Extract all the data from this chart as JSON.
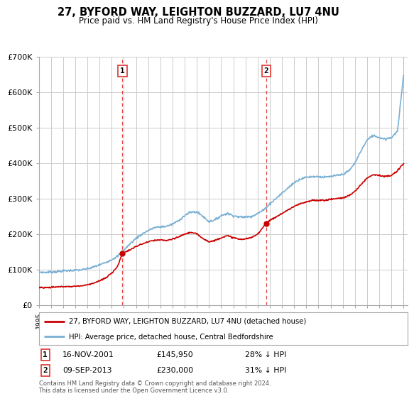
{
  "title": "27, BYFORD WAY, LEIGHTON BUZZARD, LU7 4NU",
  "subtitle": "Price paid vs. HM Land Registry's House Price Index (HPI)",
  "ylim": [
    0,
    700000
  ],
  "yticks": [
    0,
    100000,
    200000,
    300000,
    400000,
    500000,
    600000,
    700000
  ],
  "ytick_labels": [
    "£0",
    "£100K",
    "£200K",
    "£300K",
    "£400K",
    "£500K",
    "£600K",
    "£700K"
  ],
  "sale1_date": "16-NOV-2001",
  "sale1_price": 145950,
  "sale1_label": "28% ↓ HPI",
  "sale1_x": 2001.88,
  "sale2_date": "09-SEP-2013",
  "sale2_price": 230000,
  "sale2_label": "31% ↓ HPI",
  "sale2_x": 2013.69,
  "legend_line1": "27, BYFORD WAY, LEIGHTON BUZZARD, LU7 4NU (detached house)",
  "legend_line2": "HPI: Average price, detached house, Central Bedfordshire",
  "footnote": "Contains HM Land Registry data © Crown copyright and database right 2024.\nThis data is licensed under the Open Government Licence v3.0.",
  "red_color": "#cc0000",
  "blue_color": "#7ab0d4",
  "vline_color": "#dd3333",
  "background_color": "#ffffff",
  "grid_color": "#cccccc",
  "hpi_keypoints": [
    [
      1995.0,
      93000
    ],
    [
      1995.5,
      92000
    ],
    [
      1996.0,
      93000
    ],
    [
      1996.5,
      94000
    ],
    [
      1997.0,
      96000
    ],
    [
      1997.5,
      97000
    ],
    [
      1998.0,
      98000
    ],
    [
      1998.5,
      99000
    ],
    [
      1999.0,
      102000
    ],
    [
      1999.5,
      107000
    ],
    [
      2000.0,
      113000
    ],
    [
      2000.5,
      120000
    ],
    [
      2001.0,
      128000
    ],
    [
      2001.5,
      138000
    ],
    [
      2002.0,
      155000
    ],
    [
      2002.5,
      172000
    ],
    [
      2003.0,
      188000
    ],
    [
      2003.5,
      200000
    ],
    [
      2004.0,
      210000
    ],
    [
      2004.5,
      218000
    ],
    [
      2005.0,
      220000
    ],
    [
      2005.5,
      222000
    ],
    [
      2006.0,
      228000
    ],
    [
      2006.5,
      238000
    ],
    [
      2007.0,
      252000
    ],
    [
      2007.5,
      262000
    ],
    [
      2008.0,
      262000
    ],
    [
      2008.5,
      250000
    ],
    [
      2009.0,
      235000
    ],
    [
      2009.5,
      240000
    ],
    [
      2010.0,
      252000
    ],
    [
      2010.5,
      258000
    ],
    [
      2011.0,
      252000
    ],
    [
      2011.5,
      248000
    ],
    [
      2012.0,
      248000
    ],
    [
      2012.5,
      250000
    ],
    [
      2013.0,
      258000
    ],
    [
      2013.5,
      268000
    ],
    [
      2014.0,
      285000
    ],
    [
      2014.5,
      300000
    ],
    [
      2015.0,
      315000
    ],
    [
      2015.5,
      330000
    ],
    [
      2016.0,
      345000
    ],
    [
      2016.5,
      355000
    ],
    [
      2017.0,
      360000
    ],
    [
      2017.5,
      362000
    ],
    [
      2018.0,
      362000
    ],
    [
      2018.5,
      360000
    ],
    [
      2019.0,
      362000
    ],
    [
      2019.5,
      365000
    ],
    [
      2020.0,
      368000
    ],
    [
      2020.5,
      378000
    ],
    [
      2021.0,
      400000
    ],
    [
      2021.5,
      435000
    ],
    [
      2022.0,
      465000
    ],
    [
      2022.5,
      478000
    ],
    [
      2023.0,
      472000
    ],
    [
      2023.5,
      468000
    ],
    [
      2024.0,
      472000
    ],
    [
      2024.5,
      490000
    ],
    [
      2025.0,
      650000
    ]
  ],
  "red_keypoints": [
    [
      1995.0,
      50000
    ],
    [
      1995.5,
      49000
    ],
    [
      1996.0,
      50000
    ],
    [
      1996.5,
      51000
    ],
    [
      1997.0,
      52000
    ],
    [
      1997.5,
      52000
    ],
    [
      1998.0,
      53000
    ],
    [
      1998.5,
      54000
    ],
    [
      1999.0,
      57000
    ],
    [
      1999.5,
      62000
    ],
    [
      2000.0,
      68000
    ],
    [
      2000.5,
      76000
    ],
    [
      2001.0,
      90000
    ],
    [
      2001.5,
      110000
    ],
    [
      2001.88,
      145950
    ],
    [
      2002.0,
      148000
    ],
    [
      2002.5,
      155000
    ],
    [
      2003.0,
      165000
    ],
    [
      2003.5,
      172000
    ],
    [
      2004.0,
      178000
    ],
    [
      2004.5,
      182000
    ],
    [
      2005.0,
      183000
    ],
    [
      2005.5,
      182000
    ],
    [
      2006.0,
      185000
    ],
    [
      2006.5,
      192000
    ],
    [
      2007.0,
      200000
    ],
    [
      2007.5,
      205000
    ],
    [
      2008.0,
      200000
    ],
    [
      2008.5,
      188000
    ],
    [
      2009.0,
      178000
    ],
    [
      2009.5,
      182000
    ],
    [
      2010.0,
      190000
    ],
    [
      2010.5,
      195000
    ],
    [
      2011.0,
      190000
    ],
    [
      2011.5,
      185000
    ],
    [
      2012.0,
      186000
    ],
    [
      2012.5,
      190000
    ],
    [
      2013.0,
      200000
    ],
    [
      2013.69,
      230000
    ],
    [
      2014.0,
      238000
    ],
    [
      2014.5,
      248000
    ],
    [
      2015.0,
      258000
    ],
    [
      2015.5,
      268000
    ],
    [
      2016.0,
      278000
    ],
    [
      2016.5,
      285000
    ],
    [
      2017.0,
      290000
    ],
    [
      2017.5,
      295000
    ],
    [
      2018.0,
      295000
    ],
    [
      2018.5,
      295000
    ],
    [
      2019.0,
      298000
    ],
    [
      2019.5,
      300000
    ],
    [
      2020.0,
      302000
    ],
    [
      2020.5,
      308000
    ],
    [
      2021.0,
      320000
    ],
    [
      2021.5,
      340000
    ],
    [
      2022.0,
      358000
    ],
    [
      2022.5,
      368000
    ],
    [
      2023.0,
      365000
    ],
    [
      2023.5,
      362000
    ],
    [
      2024.0,
      365000
    ],
    [
      2024.5,
      378000
    ],
    [
      2025.0,
      400000
    ]
  ]
}
